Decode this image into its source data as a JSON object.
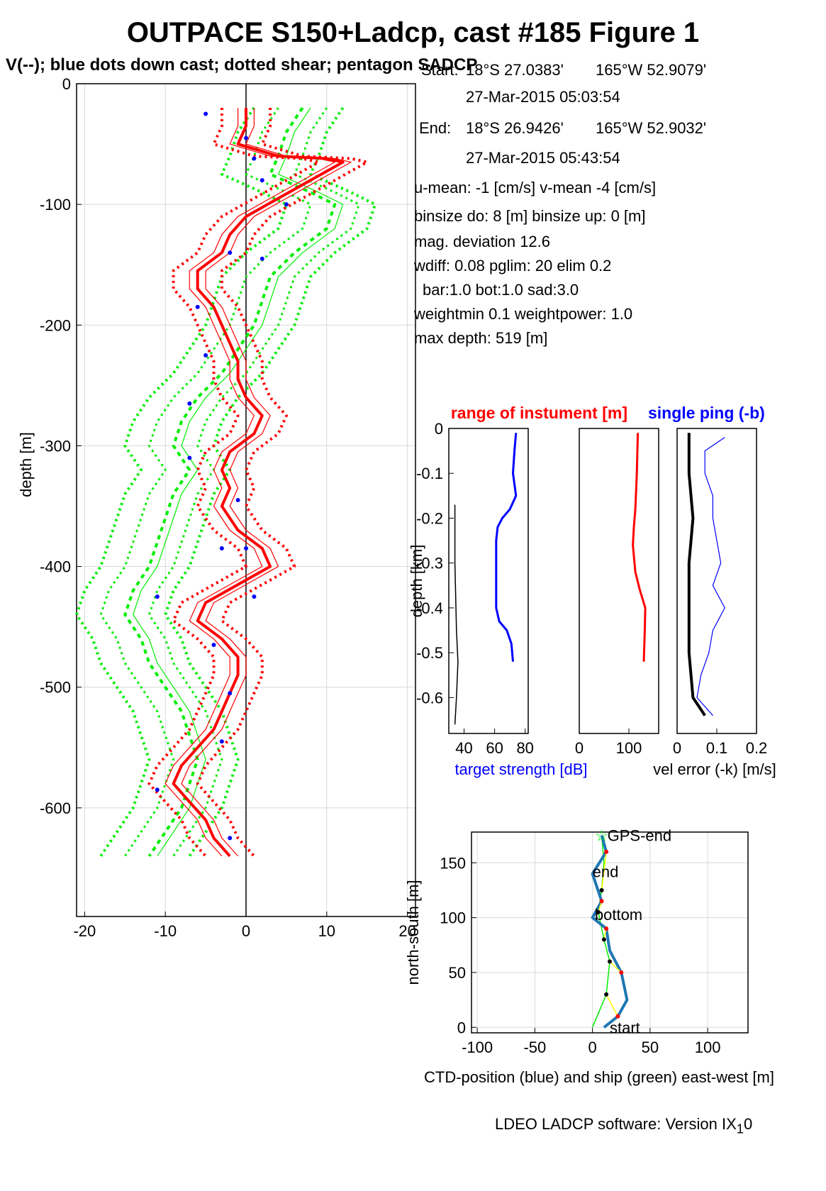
{
  "title": "OUTPACE S150+Ladcp, cast #185  Figure 1",
  "subtitle": "V(--); blue dots down cast; dotted shear; pentagon SADCP",
  "info": {
    "start_label": "Start:",
    "start_lat": "18°S 27.0383'",
    "start_lon": "165°W 52.9079'",
    "start_time": "27-Mar-2015 05:03:54",
    "end_label": "End:",
    "end_lat": "18°S 26.9426'",
    "end_lon": "165°W 52.9032'",
    "end_time": "27-Mar-2015 05:43:54",
    "umean": "u-mean:  -1 [cm/s]    v-mean  -4 [cm/s]",
    "binsize": "binsize do: 8 [m]  binsize up:  0 [m]",
    "magdev": "mag. deviation 12.6",
    "wdiff": "wdiff: 0.08  pglim: 20  elim 0.2",
    "bar": "bar:1.0 bot:1.0 sad:3.0",
    "weight": "weightmin 0.1  weightpower: 1.0",
    "maxdepth": "max depth: 519 [m]"
  },
  "footer": {
    "text": "LDEO LADCP software: Version IX",
    "sub": "1",
    "tail": "0"
  },
  "colors": {
    "red": "#ff0000",
    "green": "#00ee00",
    "blue": "#0000ff",
    "ctd_blue": "#1f77b4",
    "yellow": "#ffff00",
    "grid": "#d9d9d9"
  },
  "chart_data": [
    {
      "type": "line",
      "panel": "velocity-profile",
      "ylabel": "depth [m]",
      "xlim": [
        -21,
        21
      ],
      "ylim": [
        -690,
        0
      ],
      "xticks": [
        -20,
        -10,
        0,
        10,
        20
      ],
      "yticks": [
        0,
        -100,
        -200,
        -300,
        -400,
        -500,
        -600
      ],
      "series": [
        {
          "color": "red",
          "values": [
            [
              0,
              -20
            ],
            [
              0,
              -35
            ],
            [
              -1,
              -50
            ],
            [
              4,
              -60
            ],
            [
              10,
              -62
            ],
            [
              12,
              -65
            ],
            [
              8,
              -80
            ],
            [
              4,
              -95
            ],
            [
              0,
              -110
            ],
            [
              -2,
              -125
            ],
            [
              -3,
              -140
            ],
            [
              -6,
              -155
            ],
            [
              -6,
              -170
            ],
            [
              -4,
              -185
            ],
            [
              -3,
              -200
            ],
            [
              -2,
              -215
            ],
            [
              -1,
              -230
            ],
            [
              -1,
              -245
            ],
            [
              0,
              -260
            ],
            [
              2,
              -275
            ],
            [
              1,
              -290
            ],
            [
              -2,
              -305
            ],
            [
              -3,
              -320
            ],
            [
              -2,
              -335
            ],
            [
              -3,
              -350
            ],
            [
              -1,
              -370
            ],
            [
              2,
              -385
            ],
            [
              3,
              -400
            ],
            [
              -1,
              -415
            ],
            [
              -5,
              -430
            ],
            [
              -6,
              -445
            ],
            [
              -3,
              -460
            ],
            [
              -1,
              -475
            ],
            [
              -1,
              -490
            ],
            [
              -2,
              -505
            ],
            [
              -3,
              -520
            ],
            [
              -4,
              -535
            ],
            [
              -6,
              -550
            ],
            [
              -8,
              -565
            ],
            [
              -9,
              -580
            ],
            [
              -7,
              -595
            ],
            [
              -5,
              -610
            ],
            [
              -4,
              -625
            ],
            [
              -2,
              -640
            ]
          ]
        },
        {
          "color": "green",
          "values": [
            [
              7,
              -20
            ],
            [
              5,
              -40
            ],
            [
              4,
              -60
            ],
            [
              3,
              -75
            ],
            [
              8,
              -90
            ],
            [
              11,
              -100
            ],
            [
              10,
              -120
            ],
            [
              6,
              -140
            ],
            [
              3,
              -160
            ],
            [
              2,
              -180
            ],
            [
              1,
              -200
            ],
            [
              -1,
              -220
            ],
            [
              -3,
              -240
            ],
            [
              -6,
              -260
            ],
            [
              -8,
              -280
            ],
            [
              -9,
              -300
            ],
            [
              -7,
              -320
            ],
            [
              -9,
              -340
            ],
            [
              -10,
              -360
            ],
            [
              -11,
              -380
            ],
            [
              -12,
              -400
            ],
            [
              -14,
              -420
            ],
            [
              -15,
              -440
            ],
            [
              -13,
              -460
            ],
            [
              -12,
              -480
            ],
            [
              -10,
              -500
            ],
            [
              -8,
              -520
            ],
            [
              -7,
              -540
            ],
            [
              -6,
              -560
            ],
            [
              -7,
              -580
            ],
            [
              -8,
              -600
            ],
            [
              -10,
              -620
            ],
            [
              -12,
              -640
            ]
          ]
        },
        {
          "color": "blue",
          "role": "down-cast dots",
          "values": [
            [
              -5,
              -25
            ],
            [
              0,
              -45
            ],
            [
              1,
              -62
            ],
            [
              2,
              -80
            ],
            [
              5,
              -100
            ],
            [
              -2,
              -140
            ],
            [
              2,
              -145
            ],
            [
              -6,
              -185
            ],
            [
              -5,
              -225
            ],
            [
              -7,
              -265
            ],
            [
              -7,
              -310
            ],
            [
              -1,
              -345
            ],
            [
              -3,
              -385
            ],
            [
              0,
              -385
            ],
            [
              -11,
              -425
            ],
            [
              1,
              -425
            ],
            [
              -4,
              -465
            ],
            [
              -2,
              -505
            ],
            [
              -3,
              -545
            ],
            [
              -11,
              -585
            ],
            [
              -2,
              -625
            ]
          ]
        }
      ]
    },
    {
      "type": "line",
      "panel": "target-strength",
      "title": "range of instument [m]",
      "ylabel": "depth [km]",
      "xlabel": "target strength [dB]",
      "xlim": [
        30,
        82
      ],
      "ylim": [
        -0.68,
        0
      ],
      "xticks": [
        40,
        60,
        80
      ],
      "yticks": [
        0,
        -0.1,
        -0.2,
        -0.3,
        -0.4,
        -0.5,
        -0.6
      ],
      "series": [
        {
          "color": "blue",
          "values": [
            [
              74,
              -0.01
            ],
            [
              73,
              -0.05
            ],
            [
              72,
              -0.1
            ],
            [
              74,
              -0.15
            ],
            [
              70,
              -0.18
            ],
            [
              65,
              -0.2
            ],
            [
              62,
              -0.22
            ],
            [
              61,
              -0.25
            ],
            [
              61,
              -0.3
            ],
            [
              61,
              -0.35
            ],
            [
              61,
              -0.4
            ],
            [
              63,
              -0.43
            ],
            [
              68,
              -0.45
            ],
            [
              71,
              -0.48
            ],
            [
              72,
              -0.52
            ]
          ]
        },
        {
          "color": "black",
          "values": [
            [
              34,
              -0.17
            ],
            [
              34,
              -0.3
            ],
            [
              35,
              -0.45
            ],
            [
              36,
              -0.52
            ],
            [
              35,
              -0.6
            ],
            [
              34,
              -0.66
            ]
          ]
        }
      ]
    },
    {
      "type": "line",
      "panel": "range",
      "xlim": [
        0,
        160
      ],
      "ylim": [
        -0.68,
        0
      ],
      "xticks": [
        0,
        100
      ],
      "series": [
        {
          "color": "red",
          "values": [
            [
              118,
              -0.01
            ],
            [
              116,
              -0.1
            ],
            [
              113,
              -0.18
            ],
            [
              110,
              -0.22
            ],
            [
              108,
              -0.26
            ],
            [
              113,
              -0.32
            ],
            [
              122,
              -0.36
            ],
            [
              133,
              -0.4
            ],
            [
              132,
              -0.45
            ],
            [
              130,
              -0.52
            ]
          ]
        }
      ]
    },
    {
      "type": "line",
      "panel": "velocity-error",
      "title": "single ping (-b)",
      "xlabel": "vel error (-k) [m/s]",
      "xlim": [
        0,
        0.2
      ],
      "ylim": [
        -0.68,
        0
      ],
      "xticks": [
        0,
        0.1,
        0.2
      ],
      "series": [
        {
          "color": "blue",
          "values": [
            [
              0.12,
              -0.02
            ],
            [
              0.07,
              -0.05
            ],
            [
              0.07,
              -0.1
            ],
            [
              0.09,
              -0.15
            ],
            [
              0.09,
              -0.2
            ],
            [
              0.1,
              -0.25
            ],
            [
              0.11,
              -0.3
            ],
            [
              0.09,
              -0.35
            ],
            [
              0.12,
              -0.4
            ],
            [
              0.09,
              -0.45
            ],
            [
              0.08,
              -0.5
            ],
            [
              0.06,
              -0.55
            ],
            [
              0.05,
              -0.6
            ],
            [
              0.09,
              -0.64
            ]
          ]
        },
        {
          "color": "black",
          "values": [
            [
              0.03,
              -0.01
            ],
            [
              0.03,
              -0.1
            ],
            [
              0.04,
              -0.2
            ],
            [
              0.03,
              -0.3
            ],
            [
              0.03,
              -0.4
            ],
            [
              0.03,
              -0.5
            ],
            [
              0.04,
              -0.6
            ],
            [
              0.07,
              -0.64
            ]
          ]
        }
      ]
    },
    {
      "type": "line",
      "panel": "track",
      "xlabel": "CTD-position (blue) and ship (green) east-west [m]",
      "ylabel": "north-south [m]",
      "xlim": [
        -105,
        135
      ],
      "ylim": [
        -5,
        178
      ],
      "xticks": [
        -100,
        -50,
        0,
        50,
        100
      ],
      "yticks": [
        0,
        50,
        100,
        150
      ],
      "labels": {
        "start": "start",
        "bottom": "bottom",
        "end": "end",
        "gps_end": "GPS-end"
      },
      "series": [
        {
          "name": "CTD-position",
          "color": "ctd_blue",
          "values": [
            [
              10,
              0
            ],
            [
              22,
              10
            ],
            [
              30,
              25
            ],
            [
              25,
              50
            ],
            [
              15,
              70
            ],
            [
              12,
              90
            ],
            [
              0,
              100
            ],
            [
              8,
              115
            ],
            [
              0,
              140
            ],
            [
              12,
              160
            ],
            [
              8,
              175
            ]
          ]
        },
        {
          "name": "ship",
          "color": "green",
          "values": [
            [
              0,
              0
            ],
            [
              12,
              30
            ],
            [
              15,
              60
            ],
            [
              10,
              80
            ],
            [
              5,
              105
            ],
            [
              8,
              125
            ],
            [
              10,
              150
            ],
            [
              8,
              175
            ]
          ]
        }
      ]
    }
  ]
}
